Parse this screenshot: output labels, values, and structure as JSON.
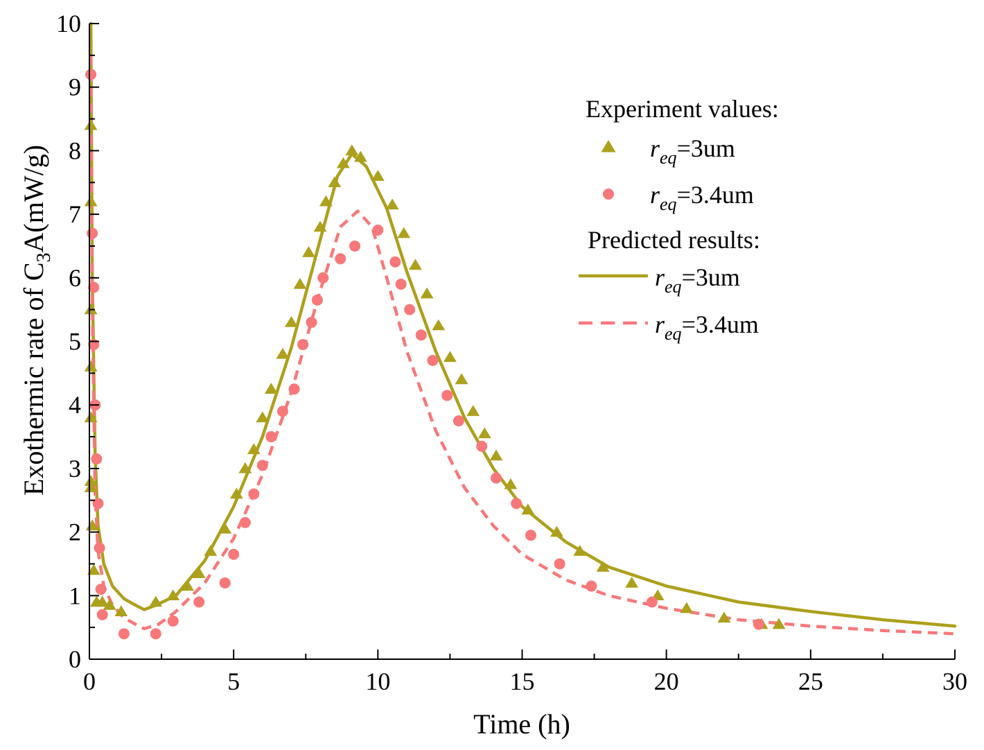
{
  "chart_data": {
    "type": "scatter",
    "title": "",
    "xlabel": "Time (h)",
    "ylabel": {
      "prefix": "Exothermic rate of C",
      "subscript": "3",
      "suffix": "A(mW/g)"
    },
    "xlim": [
      0,
      30
    ],
    "ylim": [
      0,
      10
    ],
    "x_ticks": [
      "0",
      "5",
      "10",
      "15",
      "20",
      "25",
      "30"
    ],
    "y_ticks": [
      "0",
      "1",
      "2",
      "3",
      "4",
      "5",
      "6",
      "7",
      "8",
      "9",
      "10"
    ],
    "grid": false,
    "legend": {
      "placement": "top-right",
      "experiment_heading": "Experiment values:",
      "predicted_heading": "Predicted results:",
      "entries": {
        "exp3": {
          "sym": "r",
          "sub": "eq",
          "rest": "=3um"
        },
        "exp34": {
          "sym": "r",
          "sub": "eq",
          "rest": "=3.4um"
        },
        "pred3": {
          "sym": "r",
          "sub": "eq",
          "rest": "=3um"
        },
        "pred34": {
          "sym": "r",
          "sub": "eq",
          "rest": "=3.4um"
        }
      }
    },
    "colors": {
      "olive": "#ada01c",
      "pink": "#f7787a"
    },
    "experiment": {
      "r3": {
        "marker": "triangle",
        "color": "#ada01c",
        "x": [
          0.05,
          0.05,
          0.05,
          0.05,
          0.05,
          0.05,
          0.05,
          0.1,
          0.15,
          0.25,
          0.45,
          0.7,
          1.1,
          2.3,
          2.9,
          3.4,
          3.8,
          4.2,
          4.7,
          5.1,
          5.4,
          5.7,
          6.0,
          6.3,
          6.7,
          7.0,
          7.3,
          7.6,
          8.0,
          8.2,
          8.5,
          8.8,
          9.1,
          9.4,
          10.0,
          10.5,
          10.9,
          11.3,
          11.7,
          12.1,
          12.5,
          12.9,
          13.3,
          13.7,
          14.1,
          14.6,
          15.2,
          16.2,
          17.0,
          17.8,
          18.8,
          19.7,
          20.7,
          22.0,
          23.3,
          23.9
        ],
        "y": [
          8.4,
          7.2,
          5.5,
          4.6,
          3.8,
          2.8,
          2.7,
          2.1,
          1.4,
          0.9,
          0.9,
          0.85,
          0.75,
          0.9,
          1.0,
          1.15,
          1.35,
          1.7,
          2.05,
          2.6,
          3.0,
          3.3,
          3.8,
          4.25,
          4.8,
          5.3,
          5.9,
          6.4,
          6.8,
          7.2,
          7.5,
          7.8,
          8.0,
          7.9,
          7.6,
          7.15,
          6.7,
          6.2,
          5.75,
          5.25,
          4.75,
          4.4,
          3.9,
          3.55,
          3.2,
          2.75,
          2.35,
          2.0,
          1.7,
          1.45,
          1.2,
          1.0,
          0.8,
          0.65,
          0.55,
          0.55
        ]
      },
      "r34": {
        "marker": "circle",
        "color": "#f7787a",
        "x": [
          0.05,
          0.1,
          0.15,
          0.15,
          0.2,
          0.25,
          0.3,
          0.35,
          0.4,
          0.45,
          1.2,
          2.3,
          2.9,
          3.8,
          4.7,
          5.0,
          5.4,
          5.7,
          6.0,
          6.3,
          6.7,
          7.1,
          7.4,
          7.7,
          7.9,
          8.1,
          8.7,
          9.2,
          10.0,
          10.6,
          10.8,
          11.1,
          11.5,
          11.9,
          12.4,
          12.8,
          13.6,
          14.1,
          14.8,
          15.3,
          16.3,
          17.4,
          19.5,
          23.2
        ],
        "y": [
          9.2,
          6.7,
          5.85,
          4.95,
          4.0,
          3.15,
          2.45,
          1.75,
          1.1,
          0.7,
          0.4,
          0.4,
          0.6,
          0.9,
          1.2,
          1.65,
          2.15,
          2.6,
          3.05,
          3.5,
          3.9,
          4.25,
          4.95,
          5.3,
          5.65,
          6.0,
          6.3,
          6.5,
          6.75,
          6.25,
          5.9,
          5.5,
          5.1,
          4.7,
          4.15,
          3.75,
          3.35,
          2.85,
          2.45,
          1.95,
          1.5,
          1.15,
          0.9,
          0.55
        ]
      }
    },
    "predicted": {
      "r3": {
        "style": "solid",
        "color": "#ada01c",
        "x": [
          0.05,
          0.1,
          0.2,
          0.3,
          0.5,
          0.8,
          1.2,
          1.6,
          1.9,
          2.3,
          3.0,
          4.0,
          5.0,
          6.0,
          7.0,
          8.0,
          8.6,
          9.1,
          9.6,
          10.3,
          11.0,
          12.0,
          13.0,
          14.0,
          15.0,
          16.5,
          18.0,
          20.0,
          22.5,
          25.0,
          27.5,
          30.0
        ],
        "y": [
          10.0,
          6.0,
          3.2,
          2.1,
          1.5,
          1.15,
          0.95,
          0.85,
          0.78,
          0.85,
          1.0,
          1.55,
          2.4,
          3.5,
          4.9,
          6.6,
          7.6,
          7.95,
          7.75,
          7.1,
          6.1,
          4.85,
          3.8,
          3.0,
          2.4,
          1.85,
          1.45,
          1.15,
          0.9,
          0.75,
          0.62,
          0.52
        ]
      },
      "r34": {
        "style": "dashed",
        "color": "#f7787a",
        "x": [
          0.05,
          0.1,
          0.2,
          0.3,
          0.5,
          0.8,
          1.2,
          1.6,
          1.9,
          2.4,
          3.0,
          4.0,
          5.0,
          6.0,
          7.0,
          8.0,
          8.7,
          9.3,
          9.8,
          10.4,
          11.0,
          12.0,
          13.0,
          14.0,
          15.0,
          16.5,
          18.0,
          20.0,
          22.5,
          25.0,
          27.5,
          30.0
        ],
        "y": [
          9.5,
          5.5,
          2.6,
          1.7,
          1.15,
          0.85,
          0.65,
          0.55,
          0.48,
          0.55,
          0.75,
          1.2,
          1.9,
          2.9,
          4.2,
          5.8,
          6.8,
          7.05,
          6.8,
          5.85,
          4.85,
          3.6,
          2.7,
          2.1,
          1.65,
          1.25,
          1.0,
          0.8,
          0.62,
          0.52,
          0.45,
          0.4
        ]
      }
    }
  }
}
